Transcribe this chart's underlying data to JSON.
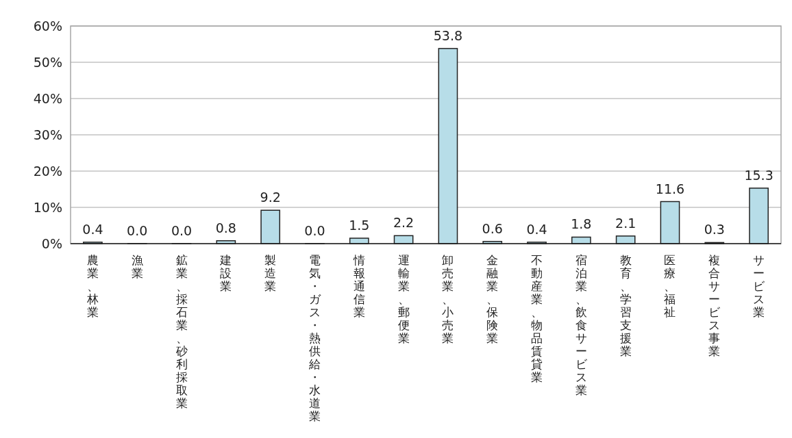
{
  "chart_data": {
    "type": "bar",
    "categories": [
      "農業、林業",
      "漁業",
      "鉱業、採石業、砂利採取業",
      "建設業",
      "製造業",
      "電気・ガス・熱供給・水道業",
      "情報通信業",
      "運輸業、郵便業",
      "卸売業、小売業",
      "金融業、保険業",
      "不動産業、物品賃貸業",
      "宿泊業、飲食サービス業",
      "教育、学習支援業",
      "医療、福祉",
      "複合サービス事業",
      "サービス業"
    ],
    "values": [
      0.4,
      0.0,
      0.0,
      0.8,
      9.2,
      0.0,
      1.5,
      2.2,
      53.8,
      0.6,
      0.4,
      1.8,
      2.1,
      11.6,
      0.3,
      15.3
    ],
    "value_labels": [
      "0.4",
      "0.0",
      "0.0",
      "0.8",
      "9.2",
      "0.0",
      "1.5",
      "2.2",
      "53.8",
      "0.6",
      "0.4",
      "1.8",
      "2.1",
      "11.6",
      "0.3",
      "15.3"
    ],
    "color": "#b7dde8",
    "grid": "y",
    "ylim": [
      0,
      60
    ],
    "yticks": [
      {
        "value": 0,
        "label": "0%"
      },
      {
        "value": 10,
        "label": "10%"
      },
      {
        "value": 20,
        "label": "20%"
      },
      {
        "value": 30,
        "label": "30%"
      },
      {
        "value": 40,
        "label": "40%"
      },
      {
        "value": 50,
        "label": "50%"
      },
      {
        "value": 60,
        "label": "60%"
      }
    ]
  }
}
